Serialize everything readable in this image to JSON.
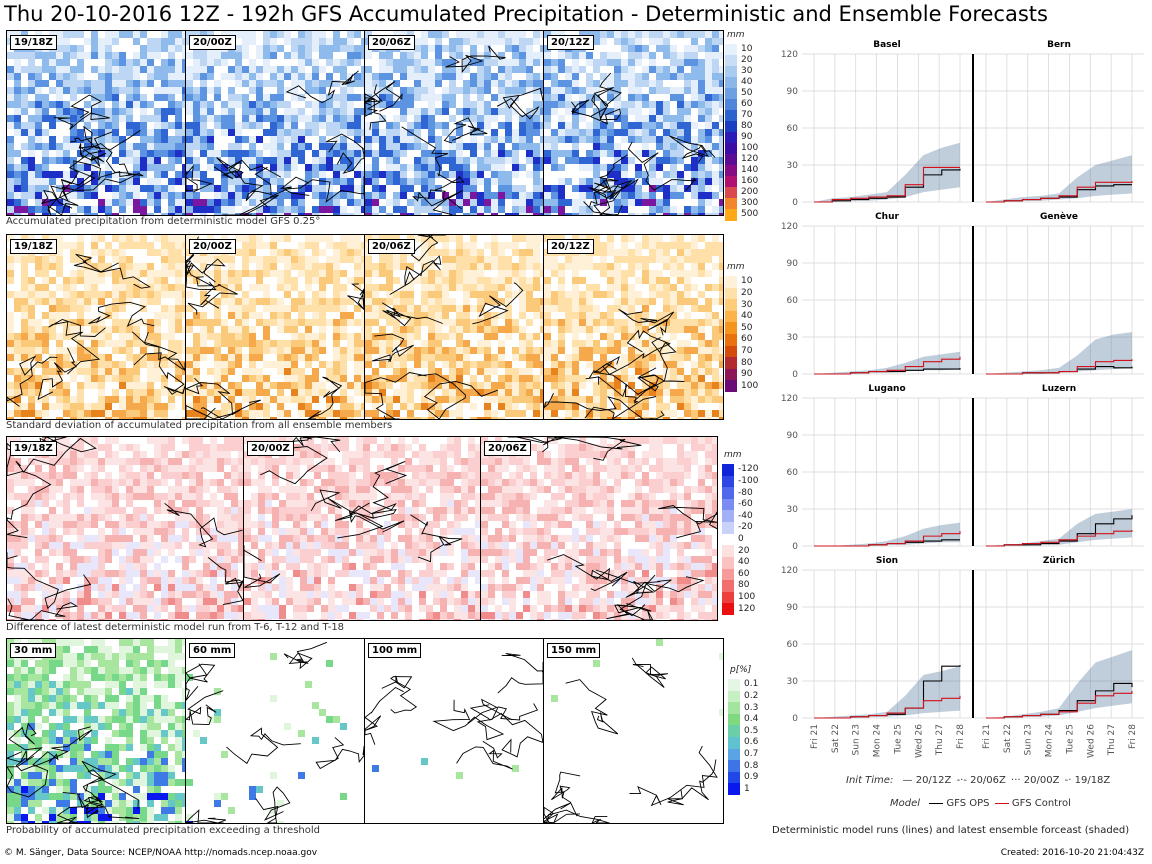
{
  "title": "Thu 20-10-2016 12Z - 192h GFS Accumulated Precipitation - Deterministic and Ensemble Forecasts",
  "rows": [
    {
      "caption": "Accumulated precipitation from deterministic model GFS 0.25°",
      "panels": [
        "19/18Z",
        "20/00Z",
        "20/06Z",
        "20/12Z"
      ],
      "colorbar": {
        "unit": "mm",
        "labels": [
          "10",
          "20",
          "30",
          "40",
          "50",
          "60",
          "70",
          "80",
          "90",
          "100",
          "120",
          "140",
          "160",
          "200",
          "300",
          "500"
        ],
        "colors": [
          "#e6f1fb",
          "#c8def6",
          "#a9cbf0",
          "#8bb6ea",
          "#6d9fe3",
          "#4f86dc",
          "#2d63cf",
          "#1a3ec2",
          "#2b1bb8",
          "#3a0ea6",
          "#5b0c95",
          "#860a86",
          "#b01072",
          "#d84a4d",
          "#f3852a",
          "#ffa818"
        ]
      },
      "fill_colors": [
        "#ffffff",
        "#e4effb",
        "#bcd6f4",
        "#8fbaec",
        "#5c94e1",
        "#2f66d3",
        "#1d2fc6",
        "#7a16a0"
      ]
    },
    {
      "caption": "Standard deviation of accumulated precipitation from all ensemble members",
      "panels": [
        "19/18Z",
        "20/00Z",
        "20/06Z",
        "20/12Z"
      ],
      "colorbar": {
        "unit": "mm",
        "labels": [
          "10",
          "20",
          "30",
          "40",
          "50",
          "60",
          "70",
          "80",
          "90",
          "100"
        ],
        "colors": [
          "#fff1d8",
          "#ffe0a8",
          "#ffcc78",
          "#fdb24a",
          "#f5951e",
          "#e8720c",
          "#d44b0c",
          "#b52a2e",
          "#8f1656",
          "#6c0a78"
        ]
      },
      "fill_colors": [
        "#ffffff",
        "#fff1d8",
        "#ffe0a8",
        "#fbc97a",
        "#f5a94a",
        "#e8821c"
      ]
    },
    {
      "caption": "Difference of latest deterministic model run from T-6, T-12 and T-18",
      "panels": [
        "19/18Z",
        "20/00Z",
        "20/06Z"
      ],
      "colorbar": {
        "unit": "mm",
        "labels": [
          "-120",
          "-100",
          "-80",
          "-60",
          "-40",
          "-20",
          "0",
          "20",
          "40",
          "60",
          "80",
          "100",
          "120"
        ],
        "colors": [
          "#1024d8",
          "#2d46e4",
          "#5068ec",
          "#7b8cf2",
          "#a4b0f6",
          "#cbd2fa",
          "#ffffff",
          "#fde0e0",
          "#fbc2c2",
          "#f79a9a",
          "#f26d6d",
          "#ee3f3f",
          "#e81010"
        ]
      },
      "fill_colors": [
        "#ffffff",
        "#fde4e4",
        "#fbcfcf",
        "#f6b1b1",
        "#e8e6fb",
        "#f08c8c"
      ]
    },
    {
      "caption": "Probability of accumulated precipitation exceeding a threshold",
      "panels": [
        "30 mm",
        "60 mm",
        "100 mm",
        "150 mm"
      ],
      "colorbar": {
        "unit": "p[%]",
        "labels": [
          "0.1",
          "0.2",
          "0.3",
          "0.4",
          "0.5",
          "0.6",
          "0.7",
          "0.8",
          "0.9",
          "1"
        ],
        "colors": [
          "#e4f7e4",
          "#c6efc4",
          "#a3e5a0",
          "#7fd97f",
          "#6acfa6",
          "#5ec2cf",
          "#5aa3e4",
          "#3f74e6",
          "#2147e8",
          "#0a18f0"
        ]
      },
      "fill_colors": [
        "#ffffff",
        "#dff5dc",
        "#a8e6a0",
        "#78d88a",
        "#66c7c8",
        "#3d7ae6",
        "#0a18f0"
      ]
    }
  ],
  "chart_data": {
    "type": "line",
    "ylabel": "",
    "ylim": [
      0,
      120
    ],
    "yticks": [
      0,
      30,
      60,
      90,
      120
    ],
    "xtick_labels": [
      "Fri 21",
      "Sat 22",
      "Sun 23",
      "Mon 24",
      "Tue 25",
      "Wed 26",
      "Thu 27",
      "Fri 28"
    ],
    "stations": [
      {
        "name": "Basel",
        "ops": [
          0,
          1,
          2,
          3,
          4,
          12,
          22,
          26,
          27
        ],
        "control": [
          0,
          2,
          3,
          4,
          5,
          14,
          28,
          28,
          28
        ],
        "band_hi": [
          0,
          3,
          4,
          6,
          8,
          22,
          38,
          44,
          48
        ],
        "band_lo": [
          0,
          0,
          1,
          1,
          2,
          4,
          8,
          10,
          12
        ]
      },
      {
        "name": "Bern",
        "ops": [
          0,
          1,
          2,
          3,
          4,
          10,
          13,
          14,
          14
        ],
        "control": [
          0,
          1,
          2,
          3,
          5,
          12,
          16,
          16,
          17
        ],
        "band_hi": [
          0,
          2,
          4,
          5,
          7,
          20,
          30,
          34,
          38
        ],
        "band_lo": [
          0,
          0,
          1,
          1,
          2,
          3,
          5,
          6,
          7
        ]
      },
      {
        "name": "Chur",
        "ops": [
          0,
          0,
          1,
          2,
          2,
          3,
          4,
          4,
          5
        ],
        "control": [
          0,
          0,
          1,
          2,
          3,
          6,
          10,
          12,
          14
        ],
        "band_hi": [
          0,
          1,
          2,
          3,
          5,
          9,
          14,
          16,
          18
        ],
        "band_lo": [
          0,
          0,
          0,
          1,
          1,
          2,
          3,
          3,
          4
        ]
      },
      {
        "name": "Genève",
        "ops": [
          0,
          0,
          1,
          1,
          2,
          4,
          6,
          5,
          6
        ],
        "control": [
          0,
          0,
          1,
          1,
          2,
          6,
          10,
          11,
          12
        ],
        "band_hi": [
          0,
          1,
          2,
          3,
          5,
          15,
          28,
          32,
          34
        ],
        "band_lo": [
          0,
          0,
          0,
          0,
          1,
          2,
          3,
          4,
          5
        ]
      },
      {
        "name": "Lugano",
        "ops": [
          0,
          0,
          0,
          1,
          2,
          3,
          4,
          5,
          5
        ],
        "control": [
          0,
          0,
          0,
          1,
          2,
          4,
          8,
          10,
          12
        ],
        "band_hi": [
          0,
          0,
          1,
          2,
          4,
          8,
          14,
          17,
          19
        ],
        "band_lo": [
          0,
          0,
          0,
          0,
          1,
          1,
          2,
          3,
          3
        ]
      },
      {
        "name": "Luzern",
        "ops": [
          0,
          1,
          1,
          2,
          4,
          10,
          18,
          22,
          25
        ],
        "control": [
          0,
          1,
          2,
          3,
          5,
          8,
          10,
          12,
          13
        ],
        "band_hi": [
          0,
          1,
          2,
          4,
          6,
          18,
          26,
          28,
          30
        ],
        "band_lo": [
          0,
          0,
          0,
          1,
          1,
          3,
          5,
          6,
          7
        ]
      },
      {
        "name": "Sion",
        "ops": [
          0,
          0,
          1,
          2,
          3,
          8,
          30,
          42,
          43
        ],
        "control": [
          0,
          0,
          1,
          2,
          4,
          8,
          14,
          16,
          18
        ],
        "band_hi": [
          0,
          1,
          2,
          3,
          5,
          18,
          35,
          38,
          42
        ],
        "band_lo": [
          0,
          0,
          0,
          1,
          1,
          2,
          4,
          5,
          6
        ]
      },
      {
        "name": "Zürich",
        "ops": [
          0,
          1,
          2,
          3,
          6,
          14,
          22,
          28,
          25
        ],
        "control": [
          0,
          1,
          2,
          3,
          5,
          12,
          18,
          20,
          22
        ],
        "band_hi": [
          0,
          1,
          3,
          5,
          8,
          28,
          45,
          50,
          55
        ],
        "band_lo": [
          0,
          0,
          1,
          1,
          2,
          5,
          8,
          10,
          12
        ]
      }
    ],
    "legend": {
      "init_time_label": "Init Time:",
      "init_times": [
        "20/12Z",
        "20/06Z",
        "20/00Z",
        "19/18Z"
      ],
      "model_label": "Model",
      "models": [
        "GFS OPS",
        "GFS Control"
      ],
      "model_colors": [
        "#000000",
        "#d0101a"
      ],
      "band_color": "#4a6f97"
    }
  },
  "right_caption": "Deterministic model runs (lines) and latest ensemble forceast (shaded)",
  "footer_left": "© M. Sänger, Data Source: NCEP/NOAA http://nomads.ncep.noaa.gov",
  "footer_right": "Created: 2016-10-20 21:04:43Z"
}
